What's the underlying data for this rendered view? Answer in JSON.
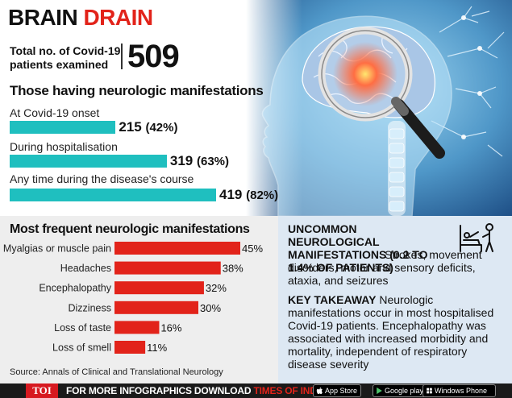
{
  "header": {
    "title_black": "BRAIN",
    "title_red": "DRAIN",
    "total_label": "Total no. of Covid-19 patients examined",
    "total_value": "509"
  },
  "neurologic": {
    "heading": "Those having neurologic manifestations",
    "items": [
      {
        "label": "At Covid-19 onset",
        "value": 215,
        "value_text": "215",
        "pct_text": "(42%)",
        "pct": 42
      },
      {
        "label": "During hospitalisation",
        "value": 319,
        "value_text": "319",
        "pct_text": "(63%)",
        "pct": 63
      },
      {
        "label": "Any time during the disease's course",
        "value": 419,
        "value_text": "419",
        "pct_text": "(82%)",
        "pct": 82
      }
    ],
    "bar_color": "#1fbfbf"
  },
  "chart_data": {
    "type": "bar",
    "orientation": "horizontal",
    "title": "Most frequent neurologic manifestations",
    "categories": [
      "Myalgias or muscle pain",
      "Headaches",
      "Encephalopathy",
      "Dizziness",
      "Loss of taste",
      "Loss of smell"
    ],
    "values": [
      45,
      38,
      32,
      30,
      16,
      11
    ],
    "value_labels": [
      "45%",
      "38%",
      "32%",
      "30%",
      "16%",
      "11%"
    ],
    "bar_color": "#e2231a",
    "xlim": [
      0,
      45
    ]
  },
  "source": "Source: Annals of Clinical and Translational Neurology",
  "uncommon": {
    "heading": "UNCOMMON NEUROLOGICAL MANIFESTATIONS (0.2 TO 1.4% OF PATIENTS)",
    "text": "Strokes, movement disorders, motor and sensory deficits, ataxia, and seizures",
    "icon": "hospital-bed-patient-icon"
  },
  "takeaway": {
    "heading": "KEY TAKEAWAY",
    "text": "Neurologic manifestations occur in most hospitalised Covid-19 patients. Encephalopathy was associated with increased morbidity and mortality, independent of respiratory disease severity"
  },
  "footer": {
    "brand": "TOI",
    "text_white": "FOR MORE  INFOGRAPHICS DOWNLOAD",
    "text_red": "TIMES OF INDIA APP",
    "stores": [
      {
        "label": "App Store",
        "icon": "apple-icon"
      },
      {
        "label": "Google play",
        "icon": "google-play-icon"
      },
      {
        "label": "Windows Phone",
        "icon": "windows-icon"
      }
    ]
  }
}
